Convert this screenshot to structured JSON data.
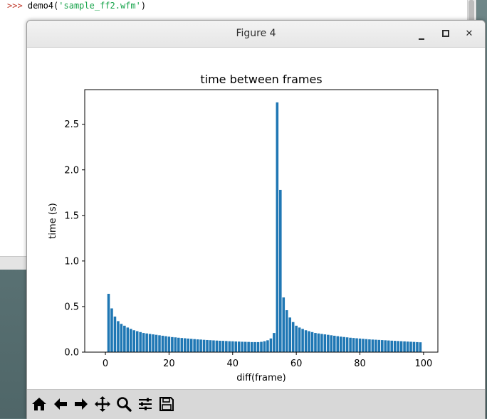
{
  "terminal": {
    "prompt": ">>> ",
    "command": "demo4(",
    "argument": "'sample_ff2.wfm'",
    "close": ")"
  },
  "window": {
    "title": "Figure 4",
    "close_glyph": "✕"
  },
  "toolbar": {
    "tools": [
      "home-icon",
      "back-arrow-icon",
      "forward-arrow-icon",
      "pan-icon",
      "zoom-icon",
      "configure-subplots-icon",
      "save-icon"
    ]
  },
  "chart_data": {
    "type": "bar",
    "title": "time between frames",
    "xlabel": "diff(frame)",
    "ylabel": "time (s)",
    "xlim": [
      -6.5,
      104.5
    ],
    "ylim": [
      0,
      2.88
    ],
    "xticks": [
      0,
      20,
      40,
      60,
      80,
      100
    ],
    "xtick_labels": [
      "0",
      "20",
      "40",
      "60",
      "80",
      "100"
    ],
    "yticks": [
      0.0,
      0.5,
      1.0,
      1.5,
      2.0,
      2.5
    ],
    "ytick_labels": [
      "0.0",
      "0.5",
      "1.0",
      "1.5",
      "2.0",
      "2.5"
    ],
    "bar_color": "#1f77b4",
    "x": [
      1,
      2,
      3,
      4,
      5,
      6,
      7,
      8,
      9,
      10,
      11,
      12,
      13,
      14,
      15,
      16,
      17,
      18,
      19,
      20,
      21,
      22,
      23,
      24,
      25,
      26,
      27,
      28,
      29,
      30,
      31,
      32,
      33,
      34,
      35,
      36,
      37,
      38,
      39,
      40,
      41,
      42,
      43,
      44,
      45,
      46,
      47,
      48,
      49,
      50,
      51,
      52,
      53,
      54,
      55,
      56,
      57,
      58,
      59,
      60,
      61,
      62,
      63,
      64,
      65,
      66,
      67,
      68,
      69,
      70,
      71,
      72,
      73,
      74,
      75,
      76,
      77,
      78,
      79,
      80,
      81,
      82,
      83,
      84,
      85,
      86,
      87,
      88,
      89,
      90,
      91,
      92,
      93,
      94,
      95,
      96,
      97,
      98,
      99
    ],
    "values": [
      0.64,
      0.48,
      0.39,
      0.34,
      0.31,
      0.29,
      0.27,
      0.255,
      0.24,
      0.23,
      0.22,
      0.21,
      0.205,
      0.2,
      0.195,
      0.19,
      0.185,
      0.18,
      0.175,
      0.17,
      0.165,
      0.162,
      0.158,
      0.155,
      0.152,
      0.149,
      0.146,
      0.143,
      0.14,
      0.138,
      0.135,
      0.133,
      0.131,
      0.129,
      0.127,
      0.125,
      0.124,
      0.122,
      0.12,
      0.119,
      0.117,
      0.116,
      0.114,
      0.113,
      0.112,
      0.11,
      0.11,
      0.11,
      0.113,
      0.12,
      0.13,
      0.15,
      0.21,
      2.74,
      1.78,
      0.6,
      0.46,
      0.38,
      0.33,
      0.29,
      0.27,
      0.255,
      0.24,
      0.23,
      0.22,
      0.21,
      0.205,
      0.2,
      0.195,
      0.19,
      0.185,
      0.18,
      0.175,
      0.17,
      0.166,
      0.162,
      0.158,
      0.155,
      0.152,
      0.149,
      0.146,
      0.143,
      0.14,
      0.138,
      0.136,
      0.134,
      0.132,
      0.13,
      0.128,
      0.126,
      0.124,
      0.122,
      0.12,
      0.118,
      0.116,
      0.114,
      0.112,
      0.11,
      0.108
    ]
  }
}
